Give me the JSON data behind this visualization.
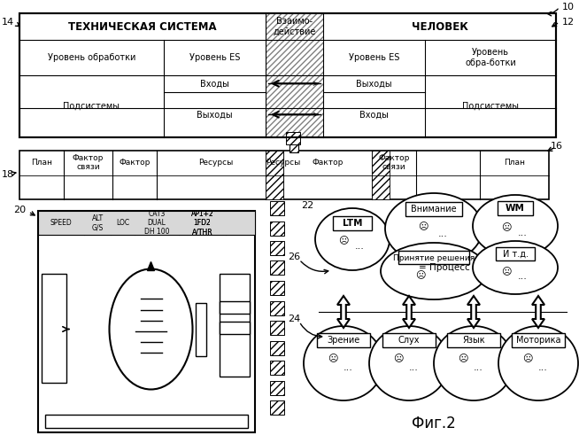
{
  "title": "Фиг.2",
  "label_10": "10",
  "label_12": "12",
  "label_14": "14",
  "label_16": "16",
  "label_18": "18",
  "label_20": "20",
  "label_22": "22",
  "label_24": "24",
  "label_26": "26",
  "tech_system_title": "ТЕХНИЧЕСКАЯ СИСТЕМА",
  "human_title": "ЧЕЛОВЕК",
  "interaction_title": "Взаимо-\nдействие",
  "level_proc": "Уровень обработки",
  "level_es_left": "Уровень ES",
  "level_es_right": "Уровень ES",
  "level_proc_right": "Уровень\nобра-ботки",
  "subsystems_left": "Подсистемы",
  "subsystems_right": "Подсистемы",
  "inputs_left": "Входы",
  "outputs_left": "Выходы",
  "outputs_right": "Выходы",
  "inputs_right": "Входы",
  "plan": "План",
  "faktor_svyazi": "Фактор\nсвязи",
  "faktor": "Фактор",
  "resursy": "Ресурсы",
  "speed": "SPEED",
  "alt_gs": "ALT\nG/S",
  "loc": "LOC",
  "cat3": "CAT3\nDUAL\nDH 100",
  "ap": "AP1+2\n1FD2\nA/THR",
  "ltm": "LTM",
  "wm": "WM",
  "vnimanie": "Внимание",
  "process": "= Процесс",
  "prinyatie": "Принятие решения",
  "itd": "И т.д.",
  "zrenie": "Зрение",
  "slukh": "Слух",
  "yazyk": "Язык",
  "motorika": "Моторика",
  "bg_color": "#ffffff"
}
